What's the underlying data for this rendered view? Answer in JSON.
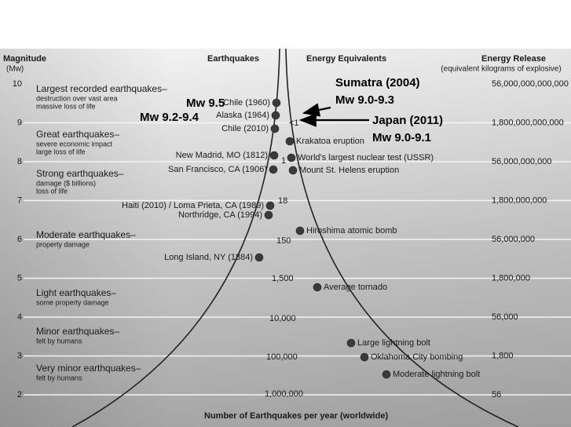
{
  "header": {
    "magnitude": "Magnitude",
    "magnitude_unit": "(Mw)",
    "earthquakes": "Earthquakes",
    "energy_equivalents": "Energy Equivalents",
    "energy_release": "Energy Release",
    "energy_release_unit": "(equivalent kilograms of explosive)"
  },
  "magnitudes": [
    "10",
    "9",
    "8",
    "7",
    "6",
    "5",
    "4",
    "3",
    "2"
  ],
  "energy_release": [
    "56,000,000,000,000",
    "1,800,000,000,000",
    "56,000,000,000",
    "1,800,000,000",
    "56,000,000",
    "1,800,000",
    "56,000",
    "1,800",
    "56"
  ],
  "classes": [
    {
      "title": "Largest recorded earthquakes–",
      "lines": [
        "destruction over vast area",
        "massive loss of life"
      ]
    },
    {
      "title": "Great earthquakes–",
      "lines": [
        "severe economic impact",
        "large loss of life"
      ]
    },
    {
      "title": "Strong earthquakes–",
      "lines": [
        "damage ($ billions)",
        "loss of life"
      ]
    },
    {
      "title": "Moderate earthquakes–",
      "lines": [
        "property damage"
      ]
    },
    {
      "title": "Light earthquakes–",
      "lines": [
        "some property damage"
      ]
    },
    {
      "title": "Minor earthquakes–",
      "lines": [
        "felt by humans"
      ]
    },
    {
      "title": "Very minor earthquakes–",
      "lines": [
        "felt by humans"
      ]
    }
  ],
  "earthquakes": [
    "Chile (1960)",
    "Alaska (1964)",
    "Chile (2010)",
    "New Madrid, MO (1812)",
    "San Francisco, CA (1906)",
    "Haiti (2010) / Loma Prieta, CA (1989)",
    "Northridge, CA (1994)",
    "Long Island, NY (1884)"
  ],
  "energy_equivalents": [
    "Krakatoa eruption",
    "World's largest nuclear test (USSR)",
    "Mount St. Helens eruption",
    "Hiroshima atomic bomb",
    "Average tornado",
    "Large lightning bolt",
    "Oklahoma City bombing",
    "Moderate lightning bolt"
  ],
  "counts": [
    "<1",
    "1",
    "18",
    "150",
    "1,500",
    "10,000",
    "100,000",
    "1,000,000"
  ],
  "annotations": [
    "Mw 9.5",
    "Mw 9.2-9.4",
    "Sumatra (2004)",
    "Mw 9.0-9.3",
    "Japan (2011)",
    "Mw 9.0-9.1"
  ],
  "footer": "Number of Earthquakes per year (worldwide)"
}
